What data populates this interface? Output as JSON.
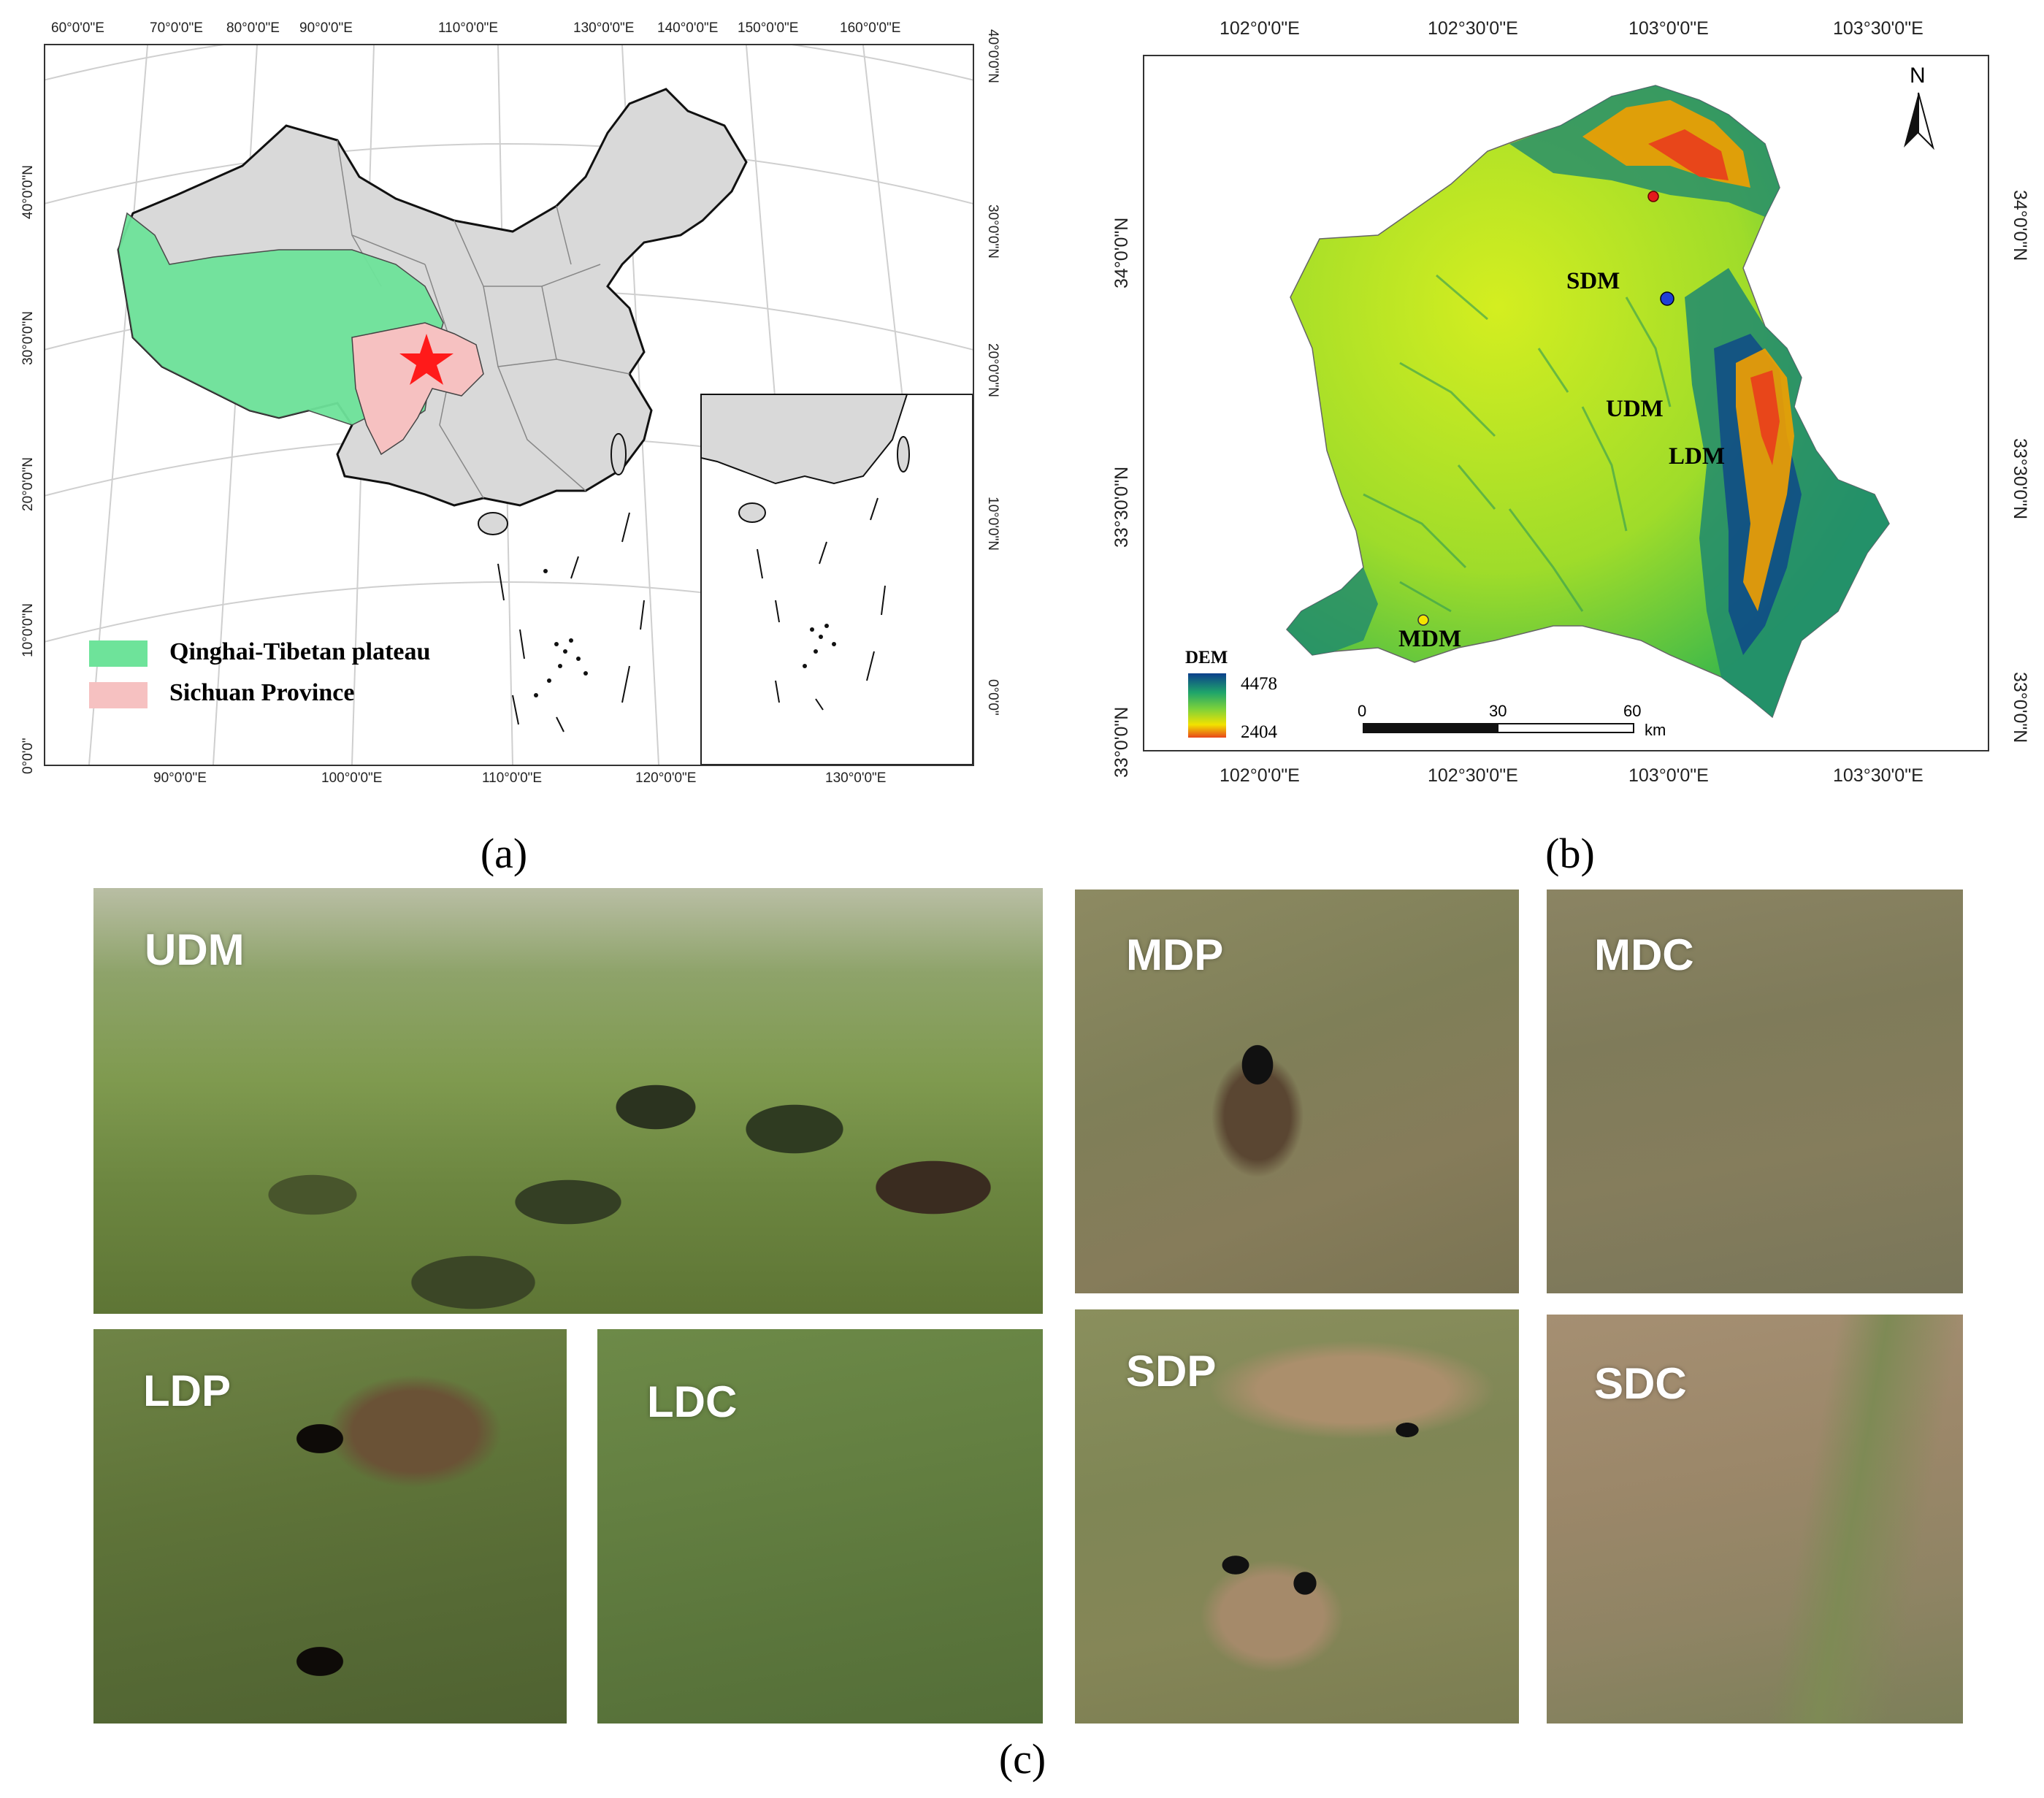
{
  "figure": {
    "captions": {
      "a": "(a)",
      "b": "(b)",
      "c": "(c)"
    }
  },
  "panel_a": {
    "top_ticks": [
      "60°0'0\"E",
      "70°0'0\"E",
      "80°0'0\"E",
      "90°0'0\"E",
      "110°0'0\"E",
      "130°0'0\"E",
      "140°0'0\"E",
      "150°0'0\"E",
      "160°0'0\"E"
    ],
    "bottom_ticks": [
      "90°0'0\"E",
      "100°0'0\"E",
      "110°0'0\"E",
      "120°0'0\"E",
      "130°0'0\"E"
    ],
    "left_ticks": [
      "40°0'0\"N",
      "30°0'0\"N",
      "20°0'0\"N",
      "10°0'0\"N",
      "0°0'0\""
    ],
    "right_ticks": [
      "40°0'0\"N",
      "30°0'0\"N",
      "20°0'0\"N",
      "10°0'0\"N",
      "0°0'0\""
    ],
    "legend": [
      {
        "label": "Qinghai-Tibetan plateau",
        "color": "#6ee39a"
      },
      {
        "label": "Sichuan Province",
        "color": "#f6c1c1"
      }
    ],
    "colors": {
      "china_fill": "#d9d9d9",
      "star": "#ff1a1a"
    }
  },
  "panel_b": {
    "top_ticks": [
      "102°0'0\"E",
      "102°30'0\"E",
      "103°0'0\"E",
      "103°30'0\"E"
    ],
    "bottom_ticks": [
      "102°0'0\"E",
      "102°30'0\"E",
      "103°0'0\"E",
      "103°30'0\"E"
    ],
    "left_ticks": [
      "34°0'0\"N",
      "33°30'0\"N",
      "33°0'0\"N"
    ],
    "right_ticks": [
      "34°0'0\"N",
      "33°30'0\"N",
      "33°0'0\"N"
    ],
    "north_label": "N",
    "sites": [
      {
        "label": "SDM",
        "color": "#e41a1c"
      },
      {
        "label": "UDM",
        "color": "#1f3fd6"
      },
      {
        "label": "LDM",
        "color": "#1f3fd6"
      },
      {
        "label": "MDM",
        "color": "#f5e300"
      }
    ],
    "dem": {
      "title": "DEM",
      "max": "4478",
      "min": "2404"
    },
    "scalebar": {
      "ticks": [
        "0",
        "30",
        "60"
      ],
      "unit": "km"
    }
  },
  "panel_c": {
    "photos": [
      {
        "label": "UDM"
      },
      {
        "label": "MDP"
      },
      {
        "label": "MDC"
      },
      {
        "label": "LDP"
      },
      {
        "label": "LDC"
      },
      {
        "label": "SDP"
      },
      {
        "label": "SDC"
      }
    ]
  }
}
